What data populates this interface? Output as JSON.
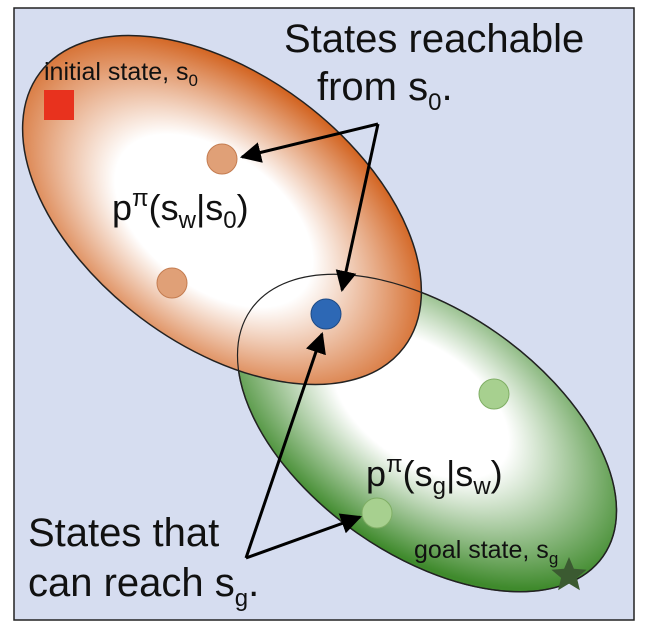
{
  "diagram": {
    "background_color": "#d6ddf0",
    "frame_color": "#222222",
    "regions": {
      "start": {
        "fill_edge": "#d2621e",
        "fill_center": "#ffffff"
      },
      "goal": {
        "fill_edge": "#3f8a2c",
        "fill_center": "#ffffff"
      }
    },
    "labels": {
      "initial_state": {
        "text": "initial state, s",
        "sub": "0"
      },
      "goal_state": {
        "text": "goal state, s",
        "sub": "g"
      },
      "reachable_from": {
        "line1": "States reachable",
        "line2": "from s",
        "sub": "0",
        "tail": "."
      },
      "can_reach": {
        "line1": "States that",
        "line2": "can reach s",
        "sub": "g",
        "tail": "."
      },
      "p_start": {
        "p": "p",
        "sup": "π",
        "open": "(s",
        "sub1": "w",
        "bar": "|s",
        "sub2": "0",
        "close": ")"
      },
      "p_goal": {
        "p": "p",
        "sup": "π",
        "open": "(s",
        "sub1": "g",
        "bar": "|s",
        "sub2": "w",
        "close": ")"
      }
    },
    "markers": {
      "initial_square_color": "#e8321e",
      "start_dot_color": "#e0a077",
      "waypoint_dot_color": "#2d68b5",
      "goal_dot_color": "#a7d08f",
      "goal_star_color": "#3b5a31"
    }
  }
}
